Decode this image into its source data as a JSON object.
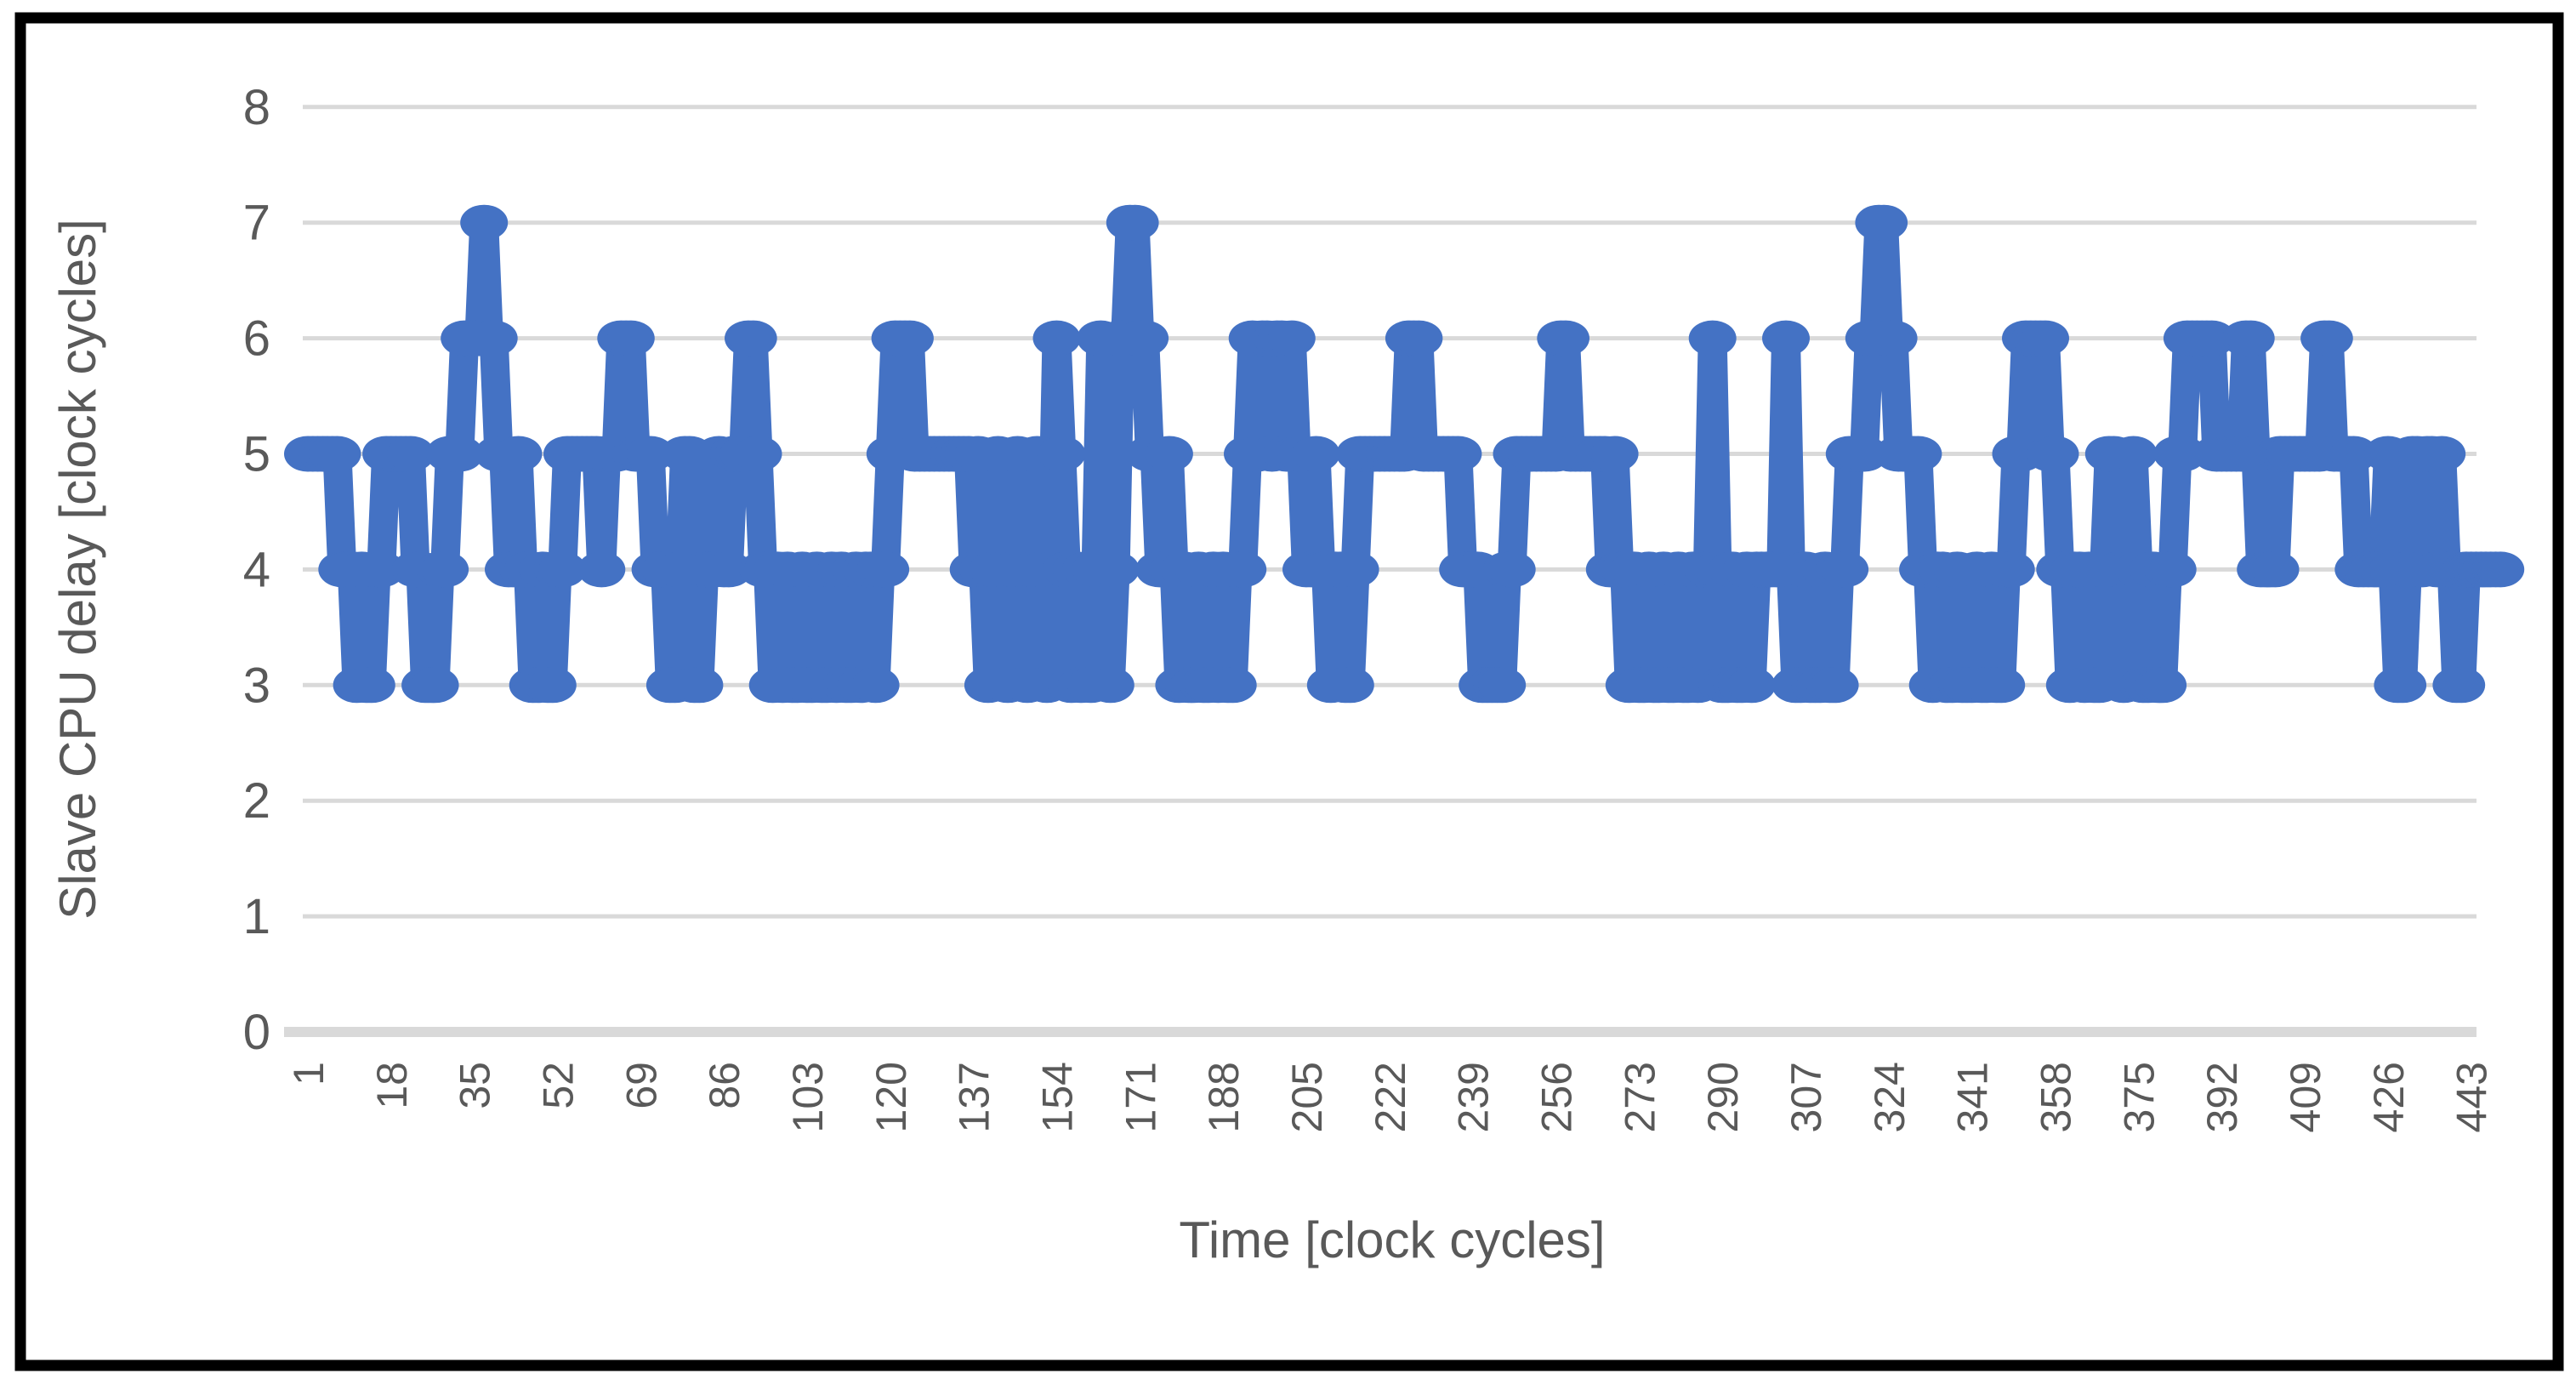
{
  "chart_data": {
    "type": "line",
    "title": "",
    "xlabel": "Time [clock cycles]",
    "ylabel": "Slave CPU delay [clock cycles]",
    "ylim": [
      0,
      8
    ],
    "y_tick_labels": [
      "0",
      "1",
      "2",
      "3",
      "4",
      "5",
      "6",
      "7",
      "8"
    ],
    "x_start": 1,
    "x_tick_step": 17,
    "x_tick_labels": [
      "1",
      "18",
      "35",
      "52",
      "69",
      "86",
      "103",
      "120",
      "137",
      "154",
      "171",
      "188",
      "205",
      "222",
      "239",
      "256",
      "273",
      "290",
      "307",
      "324",
      "341",
      "358",
      "375",
      "392",
      "409",
      "426",
      "443"
    ],
    "grid": "horizontal",
    "legend": "none",
    "marker": "ellipse",
    "series": [
      {
        "name": "Slave CPU delay",
        "values": [
          5,
          5,
          5,
          5,
          5,
          5,
          5,
          4,
          4,
          4,
          3,
          4,
          3,
          3,
          4,
          4,
          5,
          5,
          5,
          5,
          5,
          5,
          4,
          4,
          3,
          3,
          3,
          4,
          4,
          5,
          5,
          5,
          6,
          6,
          6,
          6,
          7,
          6,
          6,
          5,
          5,
          4,
          4,
          5,
          4,
          4,
          3,
          3,
          4,
          3,
          3,
          4,
          4,
          5,
          5,
          5,
          5,
          5,
          5,
          5,
          4,
          5,
          5,
          5,
          6,
          6,
          6,
          5,
          5,
          5,
          5,
          4,
          4,
          4,
          3,
          3,
          4,
          5,
          5,
          3,
          3,
          4,
          4,
          4,
          5,
          4,
          4,
          5,
          5,
          5,
          6,
          6,
          5,
          4,
          4,
          3,
          4,
          3,
          4,
          3,
          3,
          4,
          3,
          3,
          4,
          3,
          3,
          4,
          3,
          4,
          3,
          3,
          4,
          3,
          4,
          4,
          3,
          4,
          4,
          5,
          6,
          6,
          6,
          6,
          5,
          5,
          5,
          5,
          5,
          5,
          5,
          5,
          5,
          5,
          5,
          5,
          4,
          5,
          4,
          3,
          4,
          5,
          4,
          3,
          4,
          5,
          4,
          3,
          4,
          5,
          4,
          3,
          4,
          6,
          5,
          4,
          3,
          4,
          3,
          4,
          3,
          4,
          6,
          4,
          3,
          4,
          6,
          6,
          7,
          7,
          6,
          6,
          5,
          5,
          4,
          4,
          5,
          4,
          3,
          4,
          3,
          3,
          4,
          3,
          3,
          4,
          3,
          4,
          3,
          3,
          4,
          4,
          5,
          6,
          5,
          6,
          6,
          5,
          6,
          6,
          5,
          6,
          5,
          5,
          4,
          4,
          5,
          4,
          4,
          3,
          4,
          4,
          3,
          3,
          4,
          5,
          5,
          5,
          5,
          5,
          5,
          5,
          5,
          5,
          5,
          6,
          6,
          6,
          5,
          5,
          5,
          5,
          5,
          5,
          5,
          5,
          4,
          4,
          4,
          4,
          3,
          3,
          3,
          3,
          3,
          4,
          4,
          5,
          5,
          5,
          5,
          5,
          5,
          5,
          5,
          5,
          6,
          6,
          5,
          5,
          5,
          5,
          5,
          5,
          5,
          5,
          4,
          5,
          4,
          4,
          3,
          4,
          3,
          3,
          4,
          3,
          3,
          4,
          3,
          3,
          4,
          3,
          3,
          4,
          3,
          4,
          4,
          6,
          4,
          3,
          3,
          4,
          3,
          3,
          4,
          3,
          4,
          4,
          4,
          4,
          4,
          4,
          6,
          4,
          3,
          3,
          4,
          3,
          3,
          3,
          4,
          3,
          3,
          4,
          4,
          5,
          5,
          5,
          5,
          6,
          6,
          7,
          7,
          6,
          6,
          5,
          5,
          5,
          5,
          5,
          4,
          4,
          3,
          4,
          4,
          3,
          3,
          4,
          3,
          3,
          3,
          4,
          3,
          3,
          4,
          3,
          3,
          4,
          4,
          5,
          5,
          6,
          6,
          6,
          6,
          6,
          5,
          5,
          4,
          4,
          3,
          4,
          4,
          3,
          4,
          3,
          3,
          4,
          5,
          5,
          4,
          3,
          4,
          5,
          4,
          3,
          3,
          4,
          3,
          3,
          4,
          4,
          5,
          5,
          6,
          6,
          6,
          6,
          6,
          6,
          5,
          5,
          5,
          5,
          5,
          5,
          6,
          6,
          5,
          4,
          4,
          4,
          4,
          5,
          5,
          5,
          5,
          5,
          5,
          5,
          5,
          5,
          6,
          6,
          5,
          5,
          5,
          5,
          5,
          4,
          4,
          4,
          4,
          4,
          4,
          5,
          4,
          3,
          3,
          4,
          5,
          5,
          4,
          5,
          5,
          4,
          5,
          4,
          4,
          3,
          3,
          4,
          4,
          4,
          4,
          4,
          4,
          4,
          4
        ]
      }
    ],
    "colors": {
      "series": "#4472C4",
      "gridline": "#D9D9D9",
      "axis_line": "#D9D9D9",
      "tick_label": "#595959",
      "axis_title": "#595959",
      "border": "#000000",
      "background": "#FFFFFF"
    }
  }
}
